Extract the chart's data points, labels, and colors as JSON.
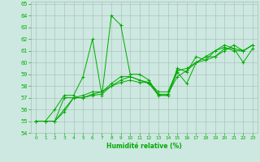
{
  "xlabel": "Humidité relative (%)",
  "xlim": [
    -0.5,
    23.5
  ],
  "ylim": [
    54,
    65.2
  ],
  "yticks": [
    54,
    55,
    56,
    57,
    58,
    59,
    60,
    61,
    62,
    63,
    64,
    65
  ],
  "xticks": [
    0,
    1,
    2,
    3,
    4,
    5,
    6,
    7,
    8,
    9,
    10,
    11,
    12,
    13,
    14,
    15,
    16,
    17,
    18,
    19,
    20,
    21,
    22,
    23
  ],
  "background_color": "#cce8e0",
  "grid_color": "#aabbb6",
  "line_color": "#00aa00",
  "lines": [
    [
      55.0,
      55.0,
      56.0,
      57.2,
      57.2,
      58.8,
      62.0,
      57.2,
      64.0,
      63.2,
      59.0,
      59.0,
      58.5,
      57.2,
      57.2,
      59.2,
      58.2,
      60.0,
      60.2,
      60.5,
      61.2,
      61.2,
      60.0,
      61.2
    ],
    [
      55.0,
      55.0,
      55.0,
      57.0,
      57.0,
      57.2,
      57.5,
      57.5,
      58.2,
      58.8,
      58.8,
      58.5,
      58.2,
      57.2,
      57.2,
      59.5,
      59.2,
      60.5,
      60.2,
      61.0,
      61.5,
      61.2,
      61.0,
      61.5
    ],
    [
      55.0,
      55.0,
      55.0,
      56.0,
      57.0,
      57.0,
      57.3,
      57.5,
      58.0,
      58.5,
      58.8,
      58.5,
      58.3,
      57.5,
      57.5,
      59.3,
      59.5,
      60.0,
      60.5,
      61.0,
      61.3,
      61.0,
      61.0,
      61.5
    ],
    [
      55.0,
      55.0,
      55.0,
      55.8,
      57.0,
      57.0,
      57.2,
      57.3,
      58.0,
      58.3,
      58.5,
      58.3,
      58.3,
      57.3,
      57.3,
      58.8,
      59.3,
      60.0,
      60.5,
      60.5,
      61.0,
      61.5,
      61.0,
      61.5
    ]
  ]
}
